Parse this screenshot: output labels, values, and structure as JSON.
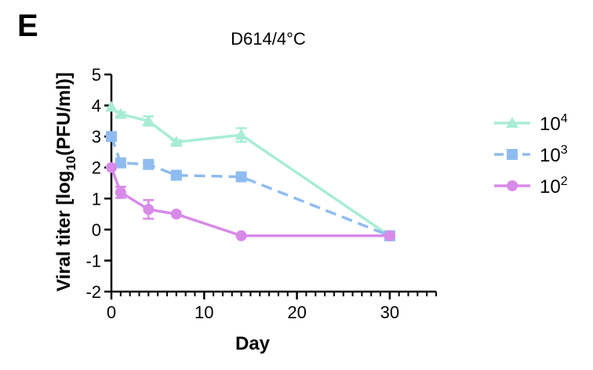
{
  "panel_label": "E",
  "chart_data": {
    "type": "line",
    "title": "D614/4°C",
    "xlabel": "Day",
    "ylabel": {
      "before": "Viral titer [log",
      "sub": "10",
      "after": "(PFU/ml)]"
    },
    "xlim": [
      0,
      35
    ],
    "ylim": [
      -2,
      5
    ],
    "x_ticks": [
      0,
      10,
      20,
      30
    ],
    "y_ticks": [
      -2,
      -1,
      0,
      1,
      2,
      3,
      4,
      5
    ],
    "legend_position": "right",
    "series": [
      {
        "name": "10^4",
        "legend_base": "10",
        "legend_exp": "4",
        "color": "#a8ecd6",
        "marker": "triangle",
        "dash": "solid",
        "x": [
          0,
          1,
          4,
          7,
          14,
          30
        ],
        "y": [
          3.95,
          3.72,
          3.5,
          2.82,
          3.05,
          -0.2
        ],
        "err": [
          0,
          0.06,
          0.15,
          0.06,
          0.22,
          0
        ]
      },
      {
        "name": "10^3",
        "legend_base": "10",
        "legend_exp": "3",
        "color": "#8fbcf0",
        "marker": "square",
        "dash": "dashed",
        "x": [
          0,
          1,
          4,
          7,
          14,
          30
        ],
        "y": [
          3.0,
          2.15,
          2.1,
          1.75,
          1.7,
          -0.2
        ],
        "err": [
          0,
          0.12,
          0.05,
          0.05,
          0.1,
          0
        ]
      },
      {
        "name": "10^2",
        "legend_base": "10",
        "legend_exp": "2",
        "color": "#d88ae8",
        "marker": "circle",
        "dash": "solid",
        "x": [
          0,
          1,
          4,
          7,
          14,
          30
        ],
        "y": [
          2.0,
          1.2,
          0.65,
          0.5,
          -0.2,
          -0.2
        ],
        "err": [
          0,
          0.18,
          0.3,
          0,
          0,
          0
        ]
      }
    ]
  }
}
